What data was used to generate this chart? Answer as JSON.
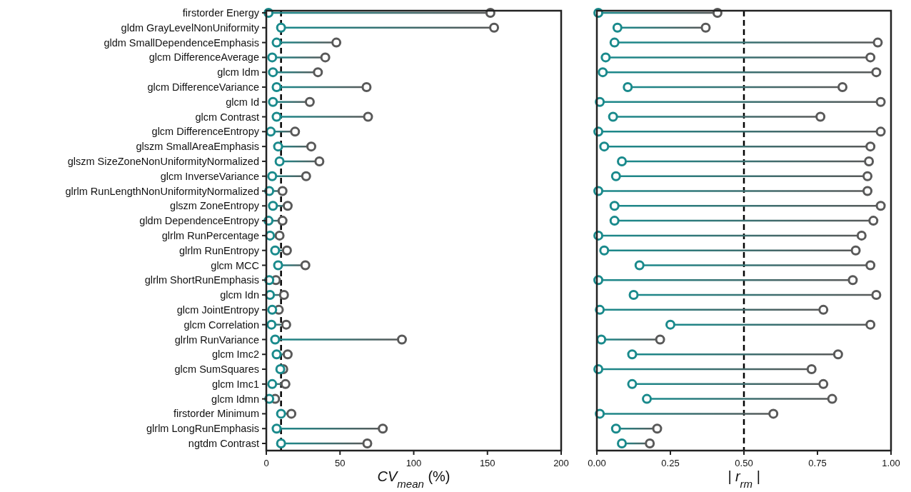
{
  "chart_data": [
    {
      "type": "scatter",
      "orientation": "horizontal",
      "marker": "circle",
      "grid": false,
      "xlabel": "CV$_{mean}$ (%)",
      "categories": [
        "firstorder Energy",
        "gldm GrayLevelNonUniformity",
        "gldm SmallDependenceEmphasis",
        "glcm DifferenceAverage",
        "glcm Idm",
        "glcm DifferenceVariance",
        "glcm Id",
        "glcm Contrast",
        "glcm DifferenceEntropy",
        "glszm SmallAreaEmphasis",
        "glszm SizeZoneNonUniformityNormalized",
        "glcm InverseVariance",
        "glrlm RunLengthNonUniformityNormalized",
        "glszm ZoneEntropy",
        "gldm DependenceEntropy",
        "glrlm RunPercentage",
        "glrlm RunEntropy",
        "glcm MCC",
        "glrlm ShortRunEmphasis",
        "glcm Idn",
        "glcm JointEntropy",
        "glcm Correlation",
        "glrlm RunVariance",
        "glcm Imc2",
        "glcm SumSquares",
        "glcm Imc1",
        "glcm Idmn",
        "firstorder Minimum",
        "glrlm LongRunEmphasis",
        "ngtdm Contrast"
      ],
      "series": [
        {
          "color": "#1a8a8c",
          "values": [
            1.5,
            10,
            7,
            4,
            4.5,
            7,
            4.5,
            7,
            3,
            8,
            9,
            4,
            2,
            4.5,
            1.5,
            2.5,
            6,
            8,
            2,
            2.5,
            4,
            3.5,
            6,
            7,
            9.5,
            4,
            2,
            10,
            7,
            10
          ]
        },
        {
          "color": "#595959",
          "values": [
            152,
            154.5,
            47.5,
            40,
            35,
            68,
            29.5,
            69,
            19.5,
            30.5,
            36,
            27,
            11,
            14.5,
            11,
            9,
            14,
            26.5,
            6.5,
            12,
            8.5,
            13.5,
            92,
            14.5,
            11.5,
            13,
            6,
            17,
            79,
            68.5
          ]
        }
      ],
      "xlim": [
        0,
        200
      ],
      "xticks": [
        0,
        50,
        100,
        150,
        200
      ],
      "ref_lines": [
        {
          "axis": "x",
          "value": 10,
          "color": "#000000",
          "line_style": "dashed"
        }
      ]
    },
    {
      "type": "scatter",
      "orientation": "horizontal",
      "marker": "circle",
      "grid": false,
      "xlabel": "| r$_{rm}$ |",
      "tick_labels": "x",
      "categories": [
        null,
        null,
        null,
        null,
        null,
        null,
        null,
        null,
        null,
        null,
        null,
        null,
        null,
        null,
        null,
        null,
        null,
        null,
        null,
        null,
        null,
        null,
        null,
        null,
        null,
        null,
        null,
        null,
        null,
        null
      ],
      "series": [
        {
          "color": "#1a8a8c",
          "values": [
            0.005,
            0.07,
            0.06,
            0.03,
            0.02,
            0.105,
            0.01,
            0.055,
            0.005,
            0.025,
            0.085,
            0.065,
            0.005,
            0.06,
            0.06,
            0.005,
            0.025,
            0.145,
            0.005,
            0.125,
            0.01,
            0.25,
            0.015,
            0.12,
            0.005,
            0.12,
            0.17,
            0.01,
            0.065,
            0.085
          ]
        },
        {
          "color": "#595959",
          "values": [
            0.41,
            0.37,
            0.955,
            0.93,
            0.95,
            0.835,
            0.965,
            0.76,
            0.965,
            0.93,
            0.925,
            0.92,
            0.92,
            0.965,
            0.94,
            0.9,
            0.88,
            0.93,
            0.87,
            0.95,
            0.77,
            0.93,
            0.215,
            0.82,
            0.73,
            0.77,
            0.8,
            0.6,
            0.205,
            0.18
          ]
        }
      ],
      "xlim": [
        0,
        1
      ],
      "xticks": [
        {
          "value": 0,
          "label": "0.00"
        },
        {
          "value": 0.25,
          "label": "0.25"
        },
        {
          "value": 0.5,
          "label": "0.50"
        },
        {
          "value": 0.75,
          "label": "0.75"
        },
        {
          "value": 1,
          "label": "1.00"
        }
      ],
      "ref_lines": [
        {
          "axis": "x",
          "value": 0.5,
          "color": "#000000",
          "line_style": "dashed"
        }
      ]
    }
  ]
}
